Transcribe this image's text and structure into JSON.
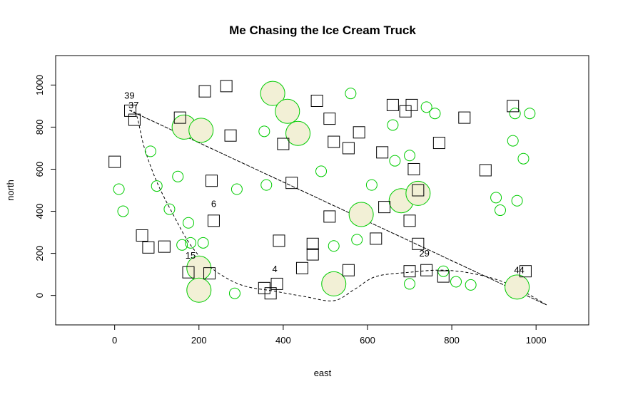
{
  "chart_data": {
    "type": "scatter",
    "title": "Me Chasing the Ice Cream Truck",
    "xlabel": "east",
    "ylabel": "north",
    "xlim": [
      -140,
      1125
    ],
    "ylim": [
      -140,
      1140
    ],
    "xticks": [
      0,
      200,
      400,
      600,
      800,
      1000
    ],
    "yticks": [
      0,
      200,
      400,
      600,
      800,
      1000
    ],
    "grid": false,
    "colors": {
      "circle_stroke": "#00cc00",
      "big_fill": "#f2f0d6",
      "square_stroke": "#000000",
      "path": "#000000"
    },
    "squares": [
      [
        0,
        635
      ],
      [
        37,
        878
      ],
      [
        47,
        835
      ],
      [
        65,
        285
      ],
      [
        80,
        228
      ],
      [
        118,
        232
      ],
      [
        155,
        845
      ],
      [
        175,
        110
      ],
      [
        225,
        105
      ],
      [
        214,
        970
      ],
      [
        265,
        995
      ],
      [
        230,
        545
      ],
      [
        235,
        355
      ],
      [
        275,
        760
      ],
      [
        390,
        260
      ],
      [
        400,
        720
      ],
      [
        420,
        535
      ],
      [
        480,
        925
      ],
      [
        510,
        840
      ],
      [
        520,
        730
      ],
      [
        555,
        700
      ],
      [
        580,
        775
      ],
      [
        635,
        680
      ],
      [
        640,
        420
      ],
      [
        470,
        245
      ],
      [
        470,
        195
      ],
      [
        510,
        375
      ],
      [
        620,
        270
      ],
      [
        555,
        120
      ],
      [
        660,
        905
      ],
      [
        690,
        875
      ],
      [
        705,
        905
      ],
      [
        710,
        600
      ],
      [
        720,
        500
      ],
      [
        700,
        355
      ],
      [
        720,
        245
      ],
      [
        700,
        115
      ],
      [
        740,
        120
      ],
      [
        780,
        90
      ],
      [
        770,
        725
      ],
      [
        830,
        845
      ],
      [
        880,
        595
      ],
      [
        945,
        900
      ],
      [
        975,
        115
      ],
      [
        355,
        35
      ],
      [
        370,
        10
      ],
      [
        385,
        55
      ],
      [
        445,
        130
      ]
    ],
    "small_circles": [
      [
        10,
        505
      ],
      [
        20,
        400
      ],
      [
        85,
        685
      ],
      [
        100,
        520
      ],
      [
        130,
        410
      ],
      [
        150,
        565
      ],
      [
        160,
        240
      ],
      [
        175,
        345
      ],
      [
        180,
        250
      ],
      [
        210,
        250
      ],
      [
        290,
        505
      ],
      [
        285,
        10
      ],
      [
        355,
        780
      ],
      [
        360,
        525
      ],
      [
        490,
        590
      ],
      [
        520,
        235
      ],
      [
        560,
        960
      ],
      [
        575,
        265
      ],
      [
        610,
        525
      ],
      [
        660,
        810
      ],
      [
        665,
        640
      ],
      [
        700,
        665
      ],
      [
        700,
        55
      ],
      [
        740,
        895
      ],
      [
        760,
        865
      ],
      [
        780,
        115
      ],
      [
        810,
        65
      ],
      [
        845,
        50
      ],
      [
        905,
        465
      ],
      [
        915,
        405
      ],
      [
        945,
        735
      ],
      [
        950,
        865
      ],
      [
        955,
        450
      ],
      [
        970,
        650
      ],
      [
        985,
        865
      ]
    ],
    "big_circles": [
      [
        165,
        800
      ],
      [
        205,
        785
      ],
      [
        200,
        130
      ],
      [
        200,
        25
      ],
      [
        375,
        960
      ],
      [
        410,
        875
      ],
      [
        435,
        770
      ],
      [
        520,
        55
      ],
      [
        585,
        385
      ],
      [
        680,
        450
      ],
      [
        720,
        485
      ],
      [
        955,
        40
      ]
    ],
    "labels": [
      {
        "text": "39",
        "x": 35,
        "y": 935
      },
      {
        "text": "37",
        "x": 45,
        "y": 890
      },
      {
        "text": "6",
        "x": 235,
        "y": 420
      },
      {
        "text": "15",
        "x": 180,
        "y": 175
      },
      {
        "text": "4",
        "x": 380,
        "y": 110
      },
      {
        "text": "29",
        "x": 735,
        "y": 185
      },
      {
        "text": "44",
        "x": 960,
        "y": 105
      }
    ],
    "triangle_path": [
      [
        35,
        880
      ],
      [
        1025,
        -45
      ],
      [
        35,
        880
      ]
    ],
    "smooth_path": [
      [
        35,
        880
      ],
      [
        52,
        855
      ],
      [
        70,
        705
      ],
      [
        100,
        540
      ],
      [
        140,
        380
      ],
      [
        180,
        240
      ],
      [
        230,
        130
      ],
      [
        300,
        50
      ],
      [
        380,
        20
      ],
      [
        450,
        -5
      ],
      [
        520,
        -25
      ],
      [
        570,
        30
      ],
      [
        620,
        90
      ],
      [
        700,
        110
      ],
      [
        780,
        120
      ],
      [
        860,
        100
      ],
      [
        940,
        50
      ],
      [
        1025,
        -45
      ]
    ]
  }
}
